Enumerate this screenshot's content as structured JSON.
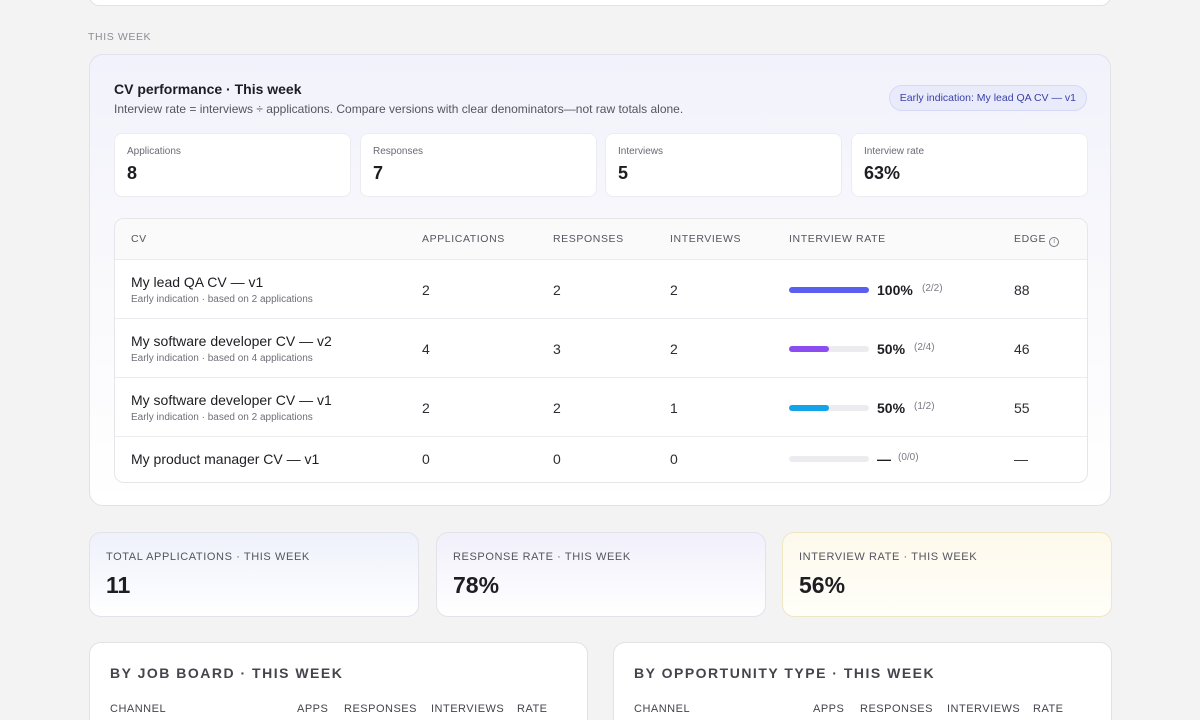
{
  "section_label": "THIS WEEK",
  "perf": {
    "title": "CV performance · This week",
    "subtitle": "Interview rate = interviews ÷ applications. Compare versions with clear denominators—not raw totals alone.",
    "badge": "Early indication: My lead QA CV — v1",
    "stats": [
      {
        "label": "Applications",
        "value": "8"
      },
      {
        "label": "Responses",
        "value": "7"
      },
      {
        "label": "Interviews",
        "value": "5"
      },
      {
        "label": "Interview rate",
        "value": "63%"
      }
    ],
    "columns": {
      "cv": "CV",
      "applications": "APPLICATIONS",
      "responses": "RESPONSES",
      "interviews": "INTERVIEWS",
      "rate": "INTERVIEW RATE",
      "edge": "EDGE",
      "edge_icon": "info-icon"
    },
    "rows": [
      {
        "name": "My lead QA CV — v1",
        "note": "Early indication · based on 2 applications",
        "applications": "2",
        "responses": "2",
        "interviews": "2",
        "rate_pct": "100%",
        "rate_frac": "(2/2)",
        "rate_fraction": 1.0,
        "bar_color": "#5b5ff0",
        "edge": "88"
      },
      {
        "name": "My software developer CV — v2",
        "note": "Early indication · based on 4 applications",
        "applications": "4",
        "responses": "3",
        "interviews": "2",
        "rate_pct": "50%",
        "rate_frac": "(2/4)",
        "rate_fraction": 0.5,
        "bar_color": "#8b4df0",
        "edge": "46"
      },
      {
        "name": "My software developer CV — v1",
        "note": "Early indication · based on 2 applications",
        "applications": "2",
        "responses": "2",
        "interviews": "1",
        "rate_pct": "50%",
        "rate_frac": "(1/2)",
        "rate_fraction": 0.5,
        "bar_color": "#12a3e8",
        "edge": "55"
      },
      {
        "name": "My product manager CV — v1",
        "note": "",
        "applications": "0",
        "responses": "0",
        "interviews": "0",
        "rate_pct": "—",
        "rate_frac": "(0/0)",
        "rate_fraction": 0,
        "bar_color": "#ececf0",
        "edge": "—"
      }
    ]
  },
  "kpis": [
    {
      "label": "TOTAL APPLICATIONS · THIS WEEK",
      "value": "11",
      "tint": "blue"
    },
    {
      "label": "RESPONSE RATE · THIS WEEK",
      "value": "78%",
      "tint": "lavender"
    },
    {
      "label": "INTERVIEW RATE · THIS WEEK",
      "value": "56%",
      "tint": "yellow"
    }
  ],
  "job_board": {
    "title": "BY JOB BOARD · THIS WEEK",
    "columns": [
      "CHANNEL",
      "APPS",
      "RESPONSES",
      "INTERVIEWS",
      "RATE"
    ]
  },
  "opportunity": {
    "title": "BY OPPORTUNITY TYPE · THIS WEEK",
    "columns": [
      "CHANNEL",
      "APPS",
      "RESPONSES",
      "INTERVIEWS",
      "RATE"
    ]
  }
}
